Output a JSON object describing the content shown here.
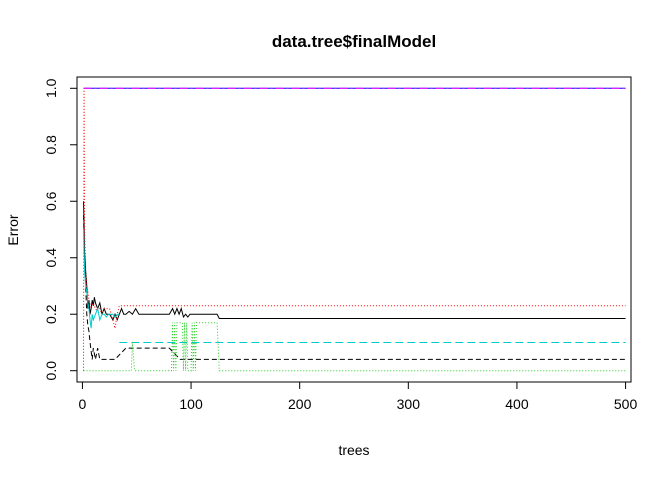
{
  "chart_data": {
    "type": "line",
    "title": "data.tree$finalModel",
    "xlabel": "trees",
    "ylabel": "Error",
    "xlim": [
      -5,
      505
    ],
    "ylim": [
      -0.04,
      1.04
    ],
    "xticks": [
      0,
      100,
      200,
      300,
      400,
      500
    ],
    "yticks": [
      0.0,
      0.2,
      0.4,
      0.6,
      0.8,
      1.0
    ],
    "xtick_labels": [
      "0",
      "100",
      "200",
      "300",
      "400",
      "500"
    ],
    "ytick_labels": [
      "0.0",
      "0.2",
      "0.4",
      "0.6",
      "0.8",
      "1.0"
    ],
    "grid": false,
    "legend": "none",
    "series": [
      {
        "color": "#000000",
        "dash": "",
        "x": [
          1,
          2,
          3,
          4,
          5,
          6,
          7,
          8,
          9,
          10,
          11,
          12,
          14,
          16,
          18,
          20,
          22,
          25,
          28,
          30,
          32,
          34,
          36,
          38,
          40,
          43,
          46,
          49,
          52,
          55,
          60,
          70,
          80,
          83,
          85,
          87,
          89,
          91,
          93,
          95,
          97,
          99,
          101,
          103,
          106,
          110,
          120,
          124,
          126,
          200,
          300,
          400,
          500
        ],
        "y": [
          0.6,
          0.42,
          0.35,
          0.3,
          0.22,
          0.25,
          0.2,
          0.22,
          0.25,
          0.23,
          0.26,
          0.24,
          0.22,
          0.24,
          0.2,
          0.22,
          0.2,
          0.2,
          0.18,
          0.2,
          0.18,
          0.2,
          0.22,
          0.2,
          0.2,
          0.21,
          0.2,
          0.22,
          0.2,
          0.2,
          0.2,
          0.2,
          0.2,
          0.22,
          0.2,
          0.22,
          0.2,
          0.22,
          0.19,
          0.2,
          0.19,
          0.2,
          0.2,
          0.2,
          0.2,
          0.2,
          0.2,
          0.2,
          0.185,
          0.185,
          0.185,
          0.185,
          0.185
        ]
      },
      {
        "color": "#000000",
        "dash": "5,3",
        "x": [
          1,
          2,
          3,
          4,
          5,
          6,
          7,
          8,
          9,
          10,
          12,
          14,
          16,
          18,
          20,
          25,
          30,
          40,
          60,
          80,
          90,
          95,
          100,
          200,
          300,
          400,
          500
        ],
        "y": [
          0.55,
          0.4,
          0.3,
          0.2,
          0.16,
          0.14,
          0.1,
          0.07,
          0.04,
          0.08,
          0.04,
          0.08,
          0.04,
          0.04,
          0.04,
          0.04,
          0.04,
          0.08,
          0.08,
          0.08,
          0.04,
          0.04,
          0.04,
          0.04,
          0.04,
          0.04,
          0.04
        ]
      },
      {
        "color": "#FF0000",
        "dash": "1,2",
        "x": [
          1,
          1.5,
          2,
          3,
          4,
          5,
          6,
          8,
          10,
          12,
          14,
          16,
          18,
          20,
          25,
          28,
          30,
          32,
          34,
          36,
          40,
          60,
          100,
          200,
          300,
          400,
          500
        ],
        "y": [
          0.0,
          1.0,
          0.5,
          0.35,
          0.3,
          0.28,
          0.25,
          0.22,
          0.24,
          0.22,
          0.21,
          0.22,
          0.2,
          0.22,
          0.22,
          0.18,
          0.15,
          0.2,
          0.23,
          0.23,
          0.23,
          0.23,
          0.23,
          0.23,
          0.23,
          0.23,
          0.23
        ]
      },
      {
        "color": "#00CCCC",
        "dash": "",
        "x": [
          1,
          2,
          3,
          4,
          5,
          6,
          7,
          8,
          9,
          10,
          12,
          14,
          16,
          18,
          20,
          22,
          24,
          26,
          28,
          30,
          32,
          34
        ],
        "y": [
          0.5,
          0.35,
          0.3,
          0.28,
          0.24,
          0.22,
          0.18,
          0.15,
          0.2,
          0.18,
          0.2,
          0.22,
          0.18,
          0.2,
          0.2,
          0.19,
          0.2,
          0.2,
          0.2,
          0.19,
          0.2,
          0.2
        ]
      },
      {
        "color": "#00CCCC",
        "dash": "8,4",
        "x": [
          34,
          50,
          100,
          200,
          300,
          400,
          500
        ],
        "y": [
          0.1,
          0.1,
          0.1,
          0.1,
          0.1,
          0.1,
          0.1
        ]
      },
      {
        "color": "#22CC22",
        "dash": "1,2",
        "x": [
          1,
          20,
          21,
          28,
          30,
          33,
          34,
          36,
          38,
          40,
          42,
          45,
          46,
          48,
          82,
          83,
          84,
          85,
          86,
          87,
          92,
          93,
          94,
          95,
          96,
          97,
          100,
          101,
          102,
          103,
          104,
          105,
          120,
          122,
          124,
          126,
          200,
          300,
          400,
          500
        ],
        "y": [
          0.0,
          0.0,
          0.0,
          0.0,
          0.0,
          0.0,
          0.0,
          0.0,
          0.0,
          0.0,
          0.0,
          0.0,
          0.1,
          0.0,
          0.0,
          0.17,
          0.0,
          0.17,
          0.0,
          0.17,
          0.17,
          0.0,
          0.17,
          0.0,
          0.17,
          0.0,
          0.0,
          0.17,
          0.0,
          0.17,
          0.0,
          0.17,
          0.17,
          0.17,
          0.17,
          0.0,
          0.0,
          0.0,
          0.0,
          0.0
        ]
      },
      {
        "color": "#0000FF",
        "dash": "",
        "x": [
          1,
          500
        ],
        "y": [
          1.0,
          1.0
        ]
      },
      {
        "color": "#FF00FF",
        "dash": "8,3,2,3",
        "x": [
          1,
          500
        ],
        "y": [
          1.0,
          1.0
        ]
      }
    ]
  }
}
